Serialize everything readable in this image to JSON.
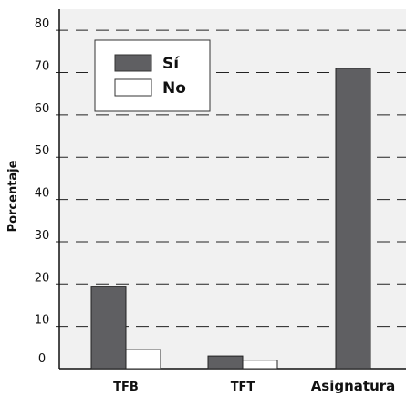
{
  "chart_data": {
    "type": "bar",
    "categories": [
      "TFB",
      "TFT",
      "Asignatura"
    ],
    "series": [
      {
        "name": "Sí",
        "values": [
          19.5,
          3,
          71
        ],
        "color": "#5f5f62"
      },
      {
        "name": "No",
        "values": [
          4.5,
          2,
          0
        ],
        "color": "#ffffff"
      }
    ],
    "xlabel": "",
    "ylabel": "Porcentaje",
    "ylim": [
      0,
      85
    ],
    "yticks": [
      0,
      10,
      20,
      30,
      40,
      50,
      60,
      70,
      80
    ],
    "yticklabels": [
      "0",
      "10",
      "20",
      "30",
      "40",
      "50",
      "60",
      "70",
      "80"
    ],
    "grid": true,
    "grid_style": "dashed",
    "legend_position": "top-left"
  }
}
